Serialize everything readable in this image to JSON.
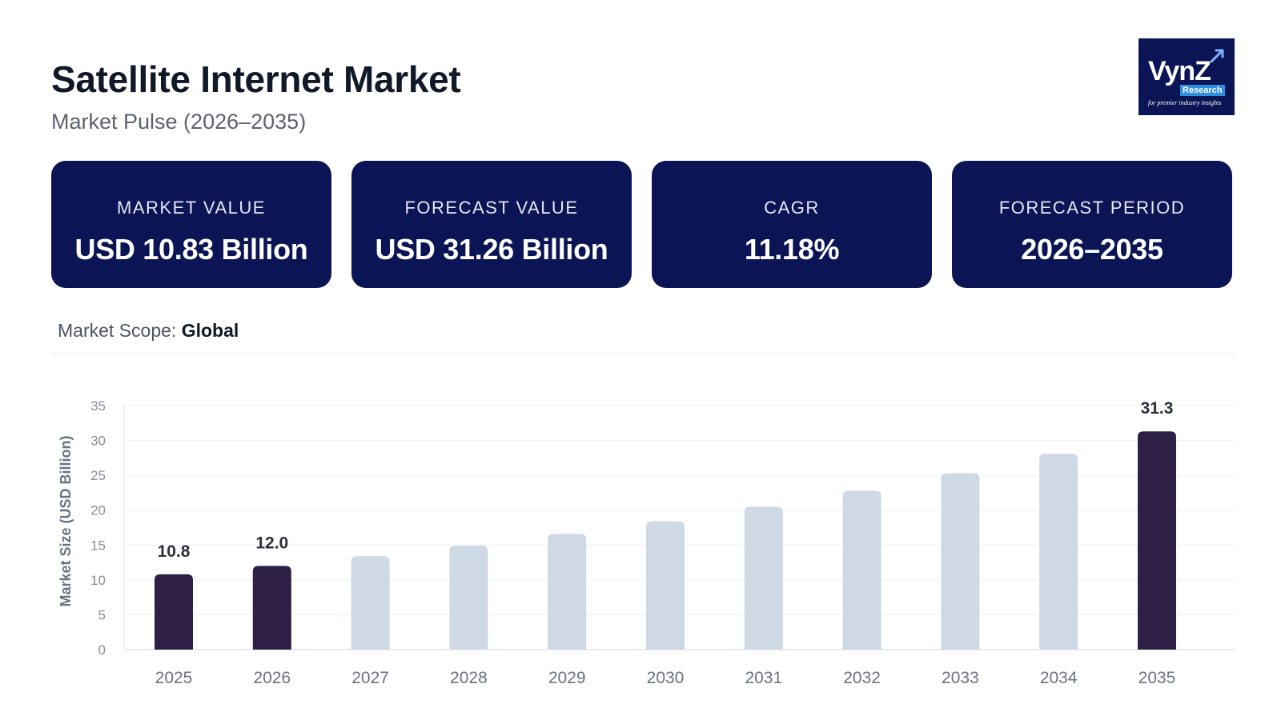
{
  "header": {
    "title": "Satellite Internet Market",
    "subtitle": "Market Pulse (2026–2035)"
  },
  "logo": {
    "name": "VynZ",
    "sub": "Research",
    "tagline": "for premier industry insights"
  },
  "cards": [
    {
      "label": "MARKET VALUE",
      "value": "USD 10.83 Billion"
    },
    {
      "label": "FORECAST VALUE",
      "value": "USD 31.26 Billion"
    },
    {
      "label": "CAGR",
      "value": "11.18%"
    },
    {
      "label": "FORECAST PERIOD",
      "value": "2026–2035"
    }
  ],
  "scope": {
    "label": "Market Scope:",
    "value": "Global"
  },
  "colors": {
    "navy": "#0b1454",
    "highlight_bar": "#2d1f45",
    "muted_bar": "#cfd9e5"
  },
  "chart_data": {
    "type": "bar",
    "categories": [
      "2025",
      "2026",
      "2027",
      "2028",
      "2029",
      "2030",
      "2031",
      "2032",
      "2033",
      "2034",
      "2035"
    ],
    "values": [
      10.8,
      12.0,
      13.4,
      14.9,
      16.6,
      18.4,
      20.5,
      22.8,
      25.3,
      28.1,
      31.3
    ],
    "highlighted": [
      true,
      true,
      false,
      false,
      false,
      false,
      false,
      false,
      false,
      false,
      true
    ],
    "data_labels": [
      "10.8",
      "12.0",
      "",
      "",
      "",
      "",
      "",
      "",
      "",
      "",
      "31.3"
    ],
    "ylabel": "Market Size (USD Billion)",
    "xlabel": "",
    "ylim": [
      0,
      35
    ],
    "yticks": [
      0,
      5,
      10,
      15,
      20,
      25,
      30,
      35
    ],
    "grid": true
  }
}
